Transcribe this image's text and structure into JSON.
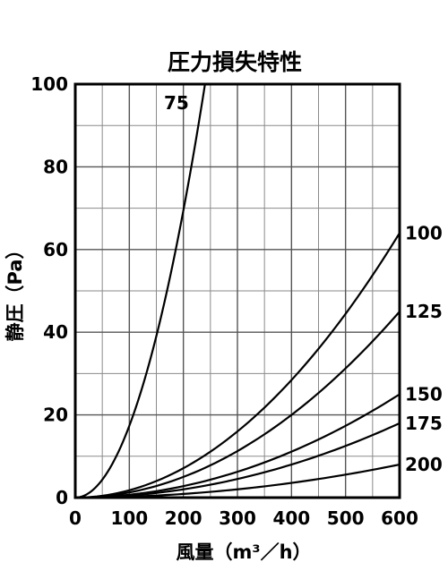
{
  "chart_data": {
    "type": "line",
    "title": "圧力損失特性",
    "xlabel": "風量（m³／h）",
    "ylabel": "静圧（Pa）",
    "xlim": [
      0,
      600
    ],
    "ylim": [
      0,
      100
    ],
    "x_ticks": [
      "0",
      "100",
      "200",
      "300",
      "400",
      "500",
      "600"
    ],
    "y_ticks": [
      "0",
      "20",
      "40",
      "60",
      "80",
      "100"
    ],
    "grid": true,
    "series": [
      {
        "name": "75",
        "x": [
          0,
          50,
          100,
          150,
          200,
          240
        ],
        "y": [
          0,
          4.3,
          17.4,
          39.1,
          69.5,
          100
        ]
      },
      {
        "name": "100",
        "x": [
          0,
          100,
          200,
          300,
          400,
          500,
          600
        ],
        "y": [
          0,
          1.8,
          7.1,
          16,
          28.4,
          44.4,
          64
        ]
      },
      {
        "name": "125",
        "x": [
          0,
          100,
          200,
          300,
          400,
          500,
          600
        ],
        "y": [
          0,
          1.3,
          5,
          11.3,
          20,
          31.3,
          45
        ]
      },
      {
        "name": "150",
        "x": [
          0,
          100,
          200,
          300,
          400,
          500,
          600
        ],
        "y": [
          0,
          0.7,
          2.8,
          6.3,
          11.1,
          17.4,
          25
        ]
      },
      {
        "name": "175",
        "x": [
          0,
          100,
          200,
          300,
          400,
          500,
          600
        ],
        "y": [
          0,
          0.5,
          2,
          4.5,
          8,
          12.5,
          18
        ]
      },
      {
        "name": "200",
        "x": [
          0,
          100,
          200,
          300,
          400,
          500,
          600
        ],
        "y": [
          0,
          0.2,
          0.9,
          2,
          3.6,
          5.6,
          8
        ]
      }
    ]
  }
}
